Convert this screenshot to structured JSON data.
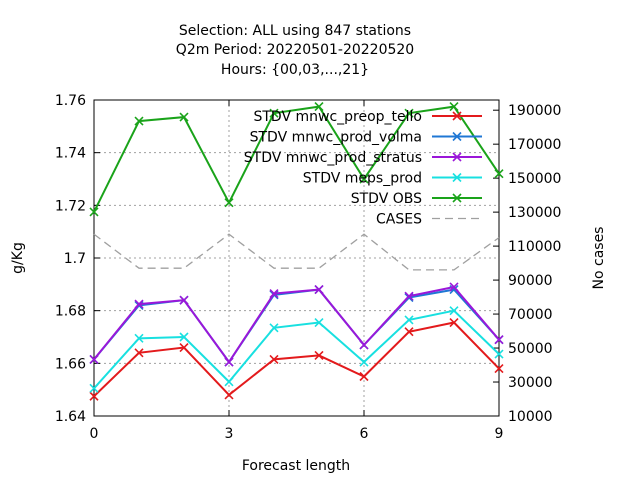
{
  "chart_data": {
    "type": "line",
    "title_lines": [
      "Selection: ALL using   847 stations",
      "Q2m   Period: 20220501-20220520",
      "Hours: {00,03,...,21}"
    ],
    "xlabel": "Forecast length",
    "ylabel": "g/Kg",
    "y2label": "No cases",
    "xlim": [
      0,
      9
    ],
    "ylim": [
      1.64,
      1.76
    ],
    "y2lim": [
      10000,
      196000
    ],
    "x_ticks": [
      "0",
      "3",
      "6",
      "9"
    ],
    "y_ticks": [
      "1.64",
      "1.66",
      "1.68",
      "1.7",
      "1.72",
      "1.74",
      "1.76"
    ],
    "y2_ticks": [
      "10000",
      "30000",
      "50000",
      "70000",
      "90000",
      "110000",
      "130000",
      "150000",
      "170000",
      "190000"
    ],
    "grid": true,
    "legend_position": "top-right",
    "x": [
      0,
      1,
      2,
      3,
      4,
      5,
      6,
      7,
      8,
      9
    ],
    "series": [
      {
        "name": "STDV mnwc_preop_tello",
        "color": "#e31a1c",
        "axis": "y",
        "marker": "x",
        "values": [
          1.6475,
          1.664,
          1.666,
          1.648,
          1.6615,
          1.663,
          1.655,
          1.672,
          1.6755,
          1.658
        ]
      },
      {
        "name": "STDV mnwc_prod_volma",
        "color": "#1f77d4",
        "axis": "y",
        "marker": "x",
        "values": [
          1.6615,
          1.682,
          1.684,
          1.6605,
          1.686,
          1.688,
          1.667,
          1.685,
          1.688,
          1.669
        ]
      },
      {
        "name": "STDV mnwc_prod_stratus",
        "color": "#9b17d9",
        "axis": "y",
        "marker": "x",
        "values": [
          1.6615,
          1.6825,
          1.684,
          1.6605,
          1.6865,
          1.688,
          1.667,
          1.6855,
          1.689,
          1.669
        ]
      },
      {
        "name": "STDV meps_prod",
        "color": "#18e0e0",
        "axis": "y",
        "marker": "x",
        "values": [
          1.6505,
          1.6695,
          1.67,
          1.653,
          1.6735,
          1.6755,
          1.6605,
          1.6765,
          1.68,
          1.6635
        ]
      },
      {
        "name": "STDV OBS",
        "color": "#1aa31a",
        "axis": "y",
        "marker": "x",
        "values": [
          1.7175,
          1.752,
          1.7535,
          1.721,
          1.755,
          1.7575,
          1.73,
          1.755,
          1.7575,
          1.732
        ]
      },
      {
        "name": "CASES",
        "color": "#a0a0a0",
        "axis": "y2",
        "marker": "none",
        "dash": true,
        "values": [
          117000,
          97000,
          97000,
          117000,
          97000,
          97000,
          117000,
          96000,
          96000,
          115000
        ]
      }
    ]
  }
}
